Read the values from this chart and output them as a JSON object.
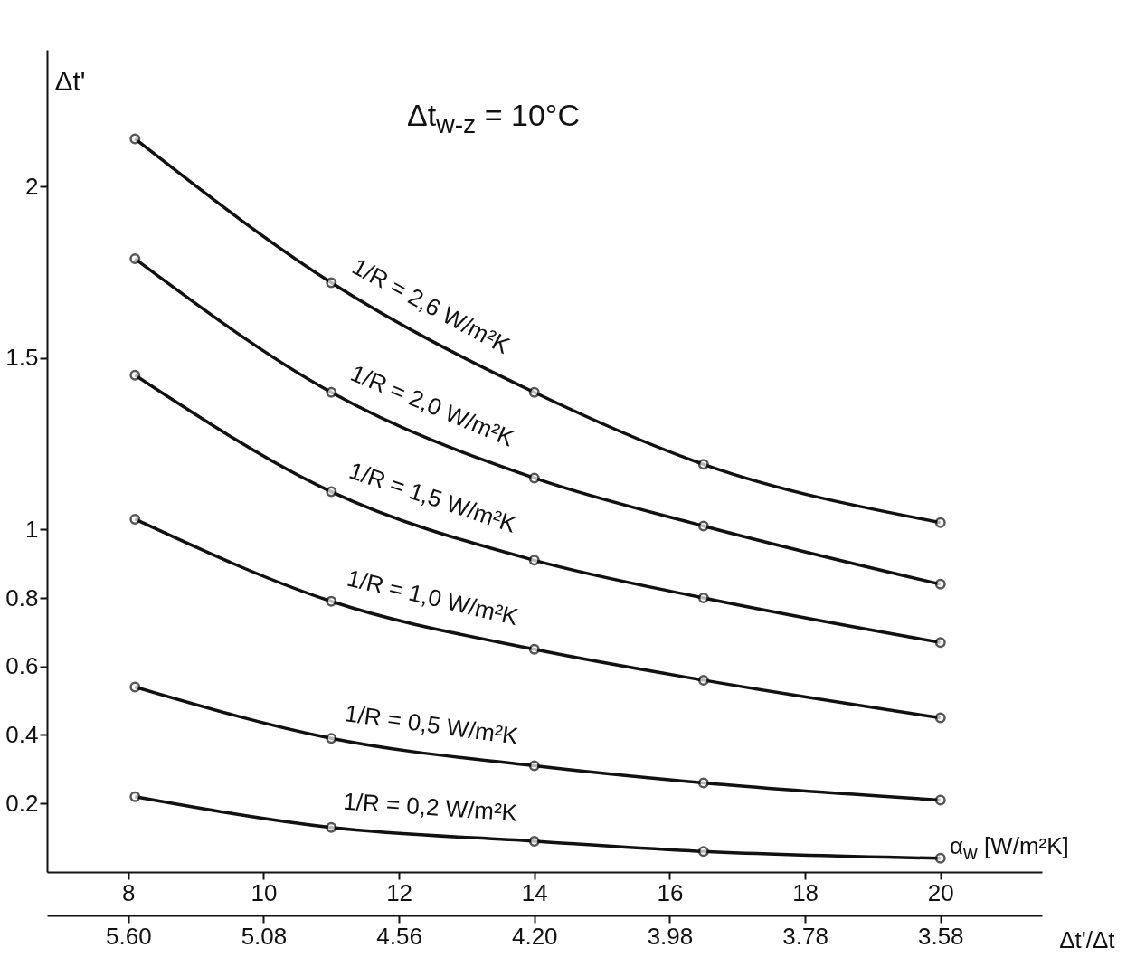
{
  "chart_data": {
    "type": "line",
    "title": "Δt$_{w-z}$ = 10°C",
    "xlabel": "α$_{w}$ [W/m²K]",
    "ylabel": "Δt'",
    "x2label": "Δt'/Δt",
    "x": [
      8.1,
      11,
      14,
      16.5,
      20
    ],
    "series": [
      {
        "name": "1/R = 2,6 W/m²K",
        "color": "#111111",
        "values": [
          2.14,
          1.72,
          1.4,
          1.19,
          1.02
        ]
      },
      {
        "name": "1/R = 2,0 W/m²K",
        "color": "#111111",
        "values": [
          1.79,
          1.4,
          1.15,
          1.01,
          0.84
        ]
      },
      {
        "name": "1/R = 1,5 W/m²K",
        "color": "#111111",
        "values": [
          1.45,
          1.11,
          0.91,
          0.8,
          0.67
        ]
      },
      {
        "name": "1/R = 1,0 W/m²K",
        "color": "#111111",
        "values": [
          1.03,
          0.79,
          0.65,
          0.56,
          0.45
        ]
      },
      {
        "name": "1/R = 0,5 W/m²K",
        "color": "#111111",
        "values": [
          0.54,
          0.39,
          0.31,
          0.26,
          0.21
        ]
      },
      {
        "name": "1/R = 0,2 W/m²K",
        "color": "#111111",
        "values": [
          0.22,
          0.13,
          0.09,
          0.06,
          0.04
        ]
      }
    ],
    "xlim": [
      6.8,
      21.5
    ],
    "xticks": [
      8,
      10,
      12,
      14,
      16,
      18,
      20
    ],
    "annotations": [
      "5.60",
      "5.08",
      "4.56",
      "4.20",
      "3.98",
      "3.78",
      "3.58"
    ],
    "ylim": [
      0,
      2.4
    ],
    "yticks": [
      0.2,
      0.4,
      0.6,
      0.8,
      1,
      1.5,
      2
    ],
    "marker": "circle",
    "line_style": "solid",
    "grid": false,
    "legend": false
  }
}
